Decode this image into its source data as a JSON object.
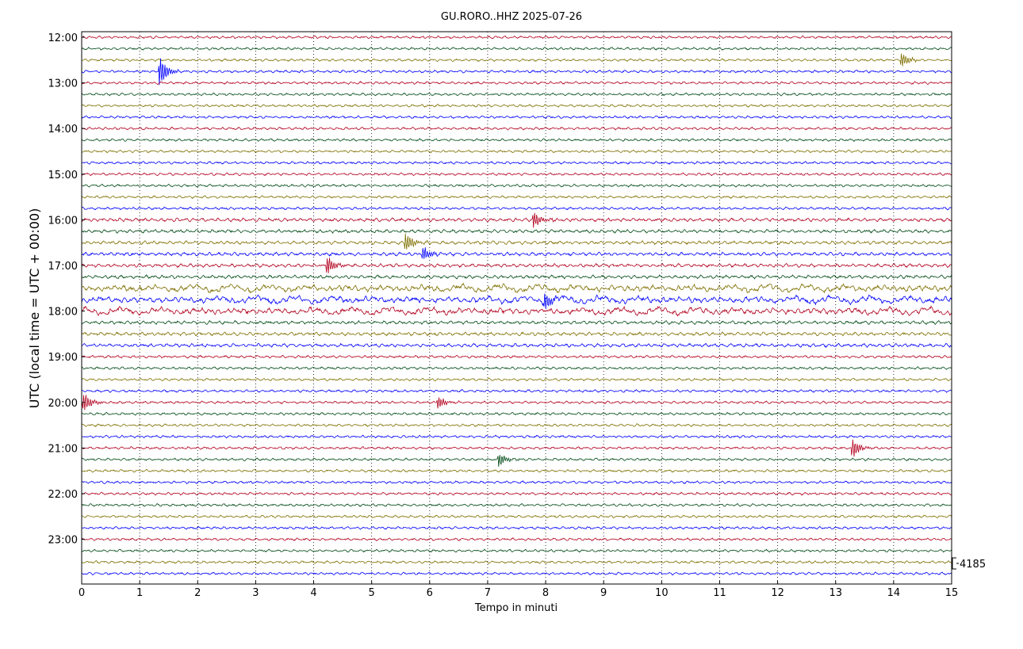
{
  "chart_data": {
    "type": "line",
    "subtype": "helicorder",
    "title": "GU.RORO..HHZ 2025-07-26",
    "xlabel": "Tempo in minuti",
    "ylabel": "UTC (local time = UTC + 00:00)",
    "xlim": [
      0,
      15
    ],
    "x_ticks": [
      "0",
      "1",
      "2",
      "3",
      "4",
      "5",
      "6",
      "7",
      "8",
      "9",
      "10",
      "11",
      "12",
      "13",
      "14",
      "15"
    ],
    "y_ticks": [
      "12:00",
      "13:00",
      "14:00",
      "15:00",
      "16:00",
      "17:00",
      "18:00",
      "19:00",
      "20:00",
      "21:00",
      "22:00",
      "23:00"
    ],
    "trace_start": "12:00",
    "trace_end": "23:45",
    "minutes_per_line": 15,
    "line_count": 48,
    "colors": [
      "#b2001e",
      "#004b16",
      "#7f7000",
      "#0000ff"
    ],
    "grid": "vertical dotted at each minute",
    "scale_label": "4185",
    "events": [
      {
        "line": "12:45",
        "minute": 1.35,
        "amplitude": 1.6
      },
      {
        "line": "16:00",
        "minute": 7.8,
        "amplitude": 0.8
      },
      {
        "line": "16:30",
        "minute": 5.6,
        "amplitude": 0.9
      },
      {
        "line": "16:45",
        "minute": 5.9,
        "amplitude": 0.7
      },
      {
        "line": "17:00",
        "minute": 4.25,
        "amplitude": 0.9
      },
      {
        "line": "17:45",
        "minute": 8.0,
        "amplitude": 0.8
      },
      {
        "line": "20:00",
        "minute": 0.05,
        "amplitude": 0.9
      },
      {
        "line": "20:00",
        "minute": 6.15,
        "amplitude": 0.6
      },
      {
        "line": "21:00",
        "minute": 13.3,
        "amplitude": 0.9
      },
      {
        "line": "21:15",
        "minute": 7.2,
        "amplitude": 0.7
      },
      {
        "line": "12:30",
        "minute": 14.15,
        "amplitude": 0.7
      }
    ]
  }
}
